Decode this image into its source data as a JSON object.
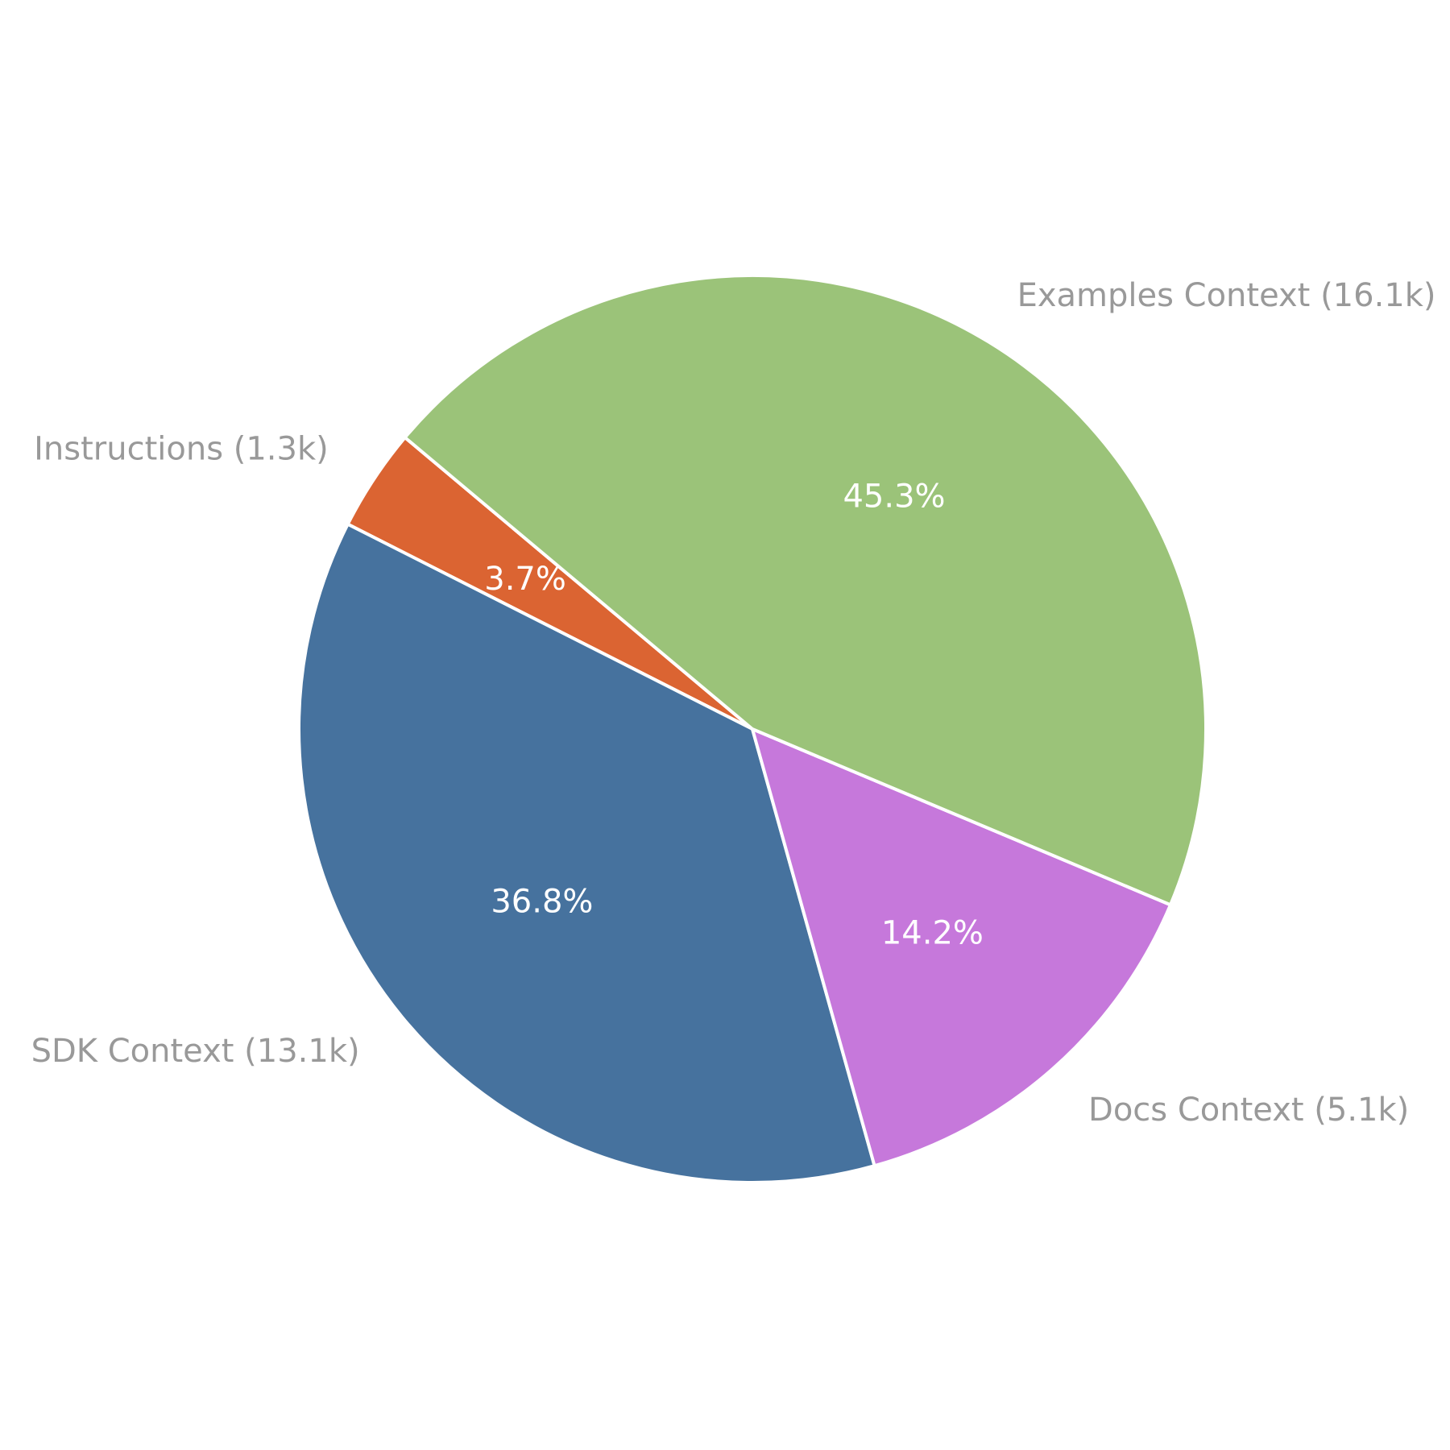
{
  "chart_data": {
    "type": "pie",
    "slices": [
      {
        "label": "Instructions (1.3k)",
        "percent_label": "3.7%",
        "value": 1.3,
        "color": "#db6432"
      },
      {
        "label": "SDK Context (13.1k)",
        "percent_label": "36.8%",
        "value": 13.1,
        "color": "#46729e"
      },
      {
        "label": "Docs Context (5.1k)",
        "percent_label": "14.2%",
        "value": 5.1,
        "color": "#c678db"
      },
      {
        "label": "Examples Context (16.1k)",
        "percent_label": "45.3%",
        "value": 16.1,
        "color": "#9bc379"
      }
    ],
    "edge_color": "#ffffff",
    "start_angle_deg": 140,
    "direction": "counterclockwise"
  }
}
